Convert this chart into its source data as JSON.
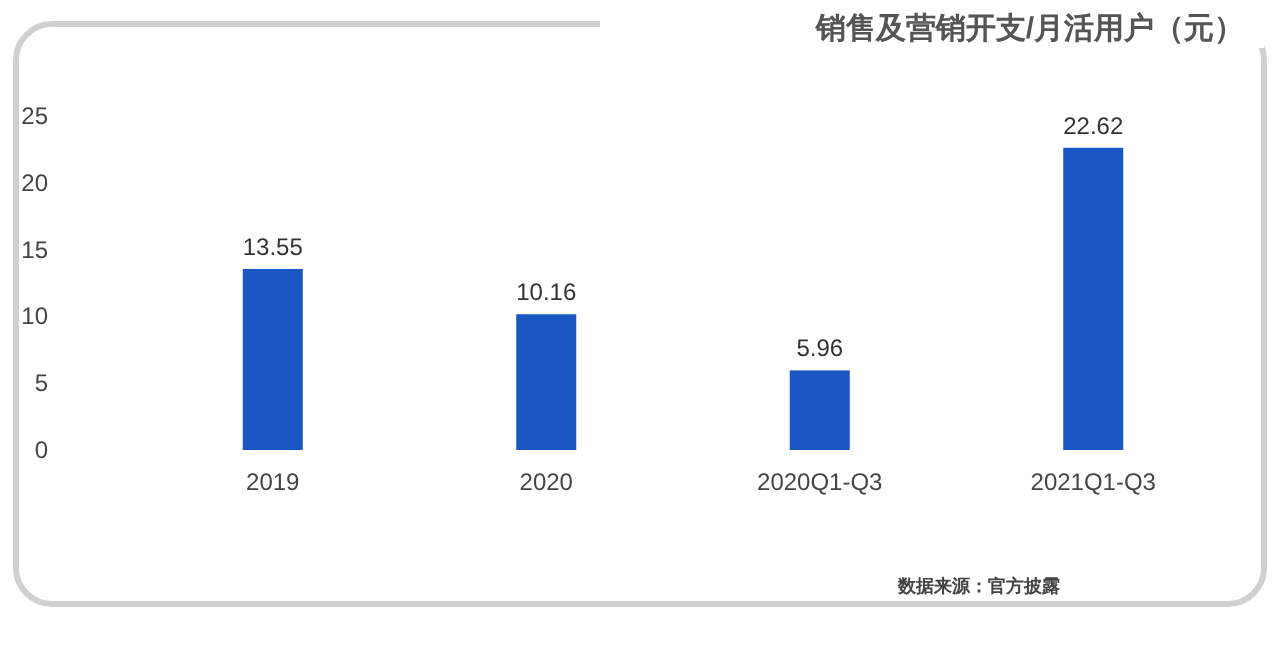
{
  "chart_data": {
    "type": "bar",
    "title": "销售及营销开支/月活用户（元）",
    "categories": [
      "2019",
      "2020",
      "2020Q1-Q3",
      "2021Q1-Q3"
    ],
    "values": [
      13.55,
      10.16,
      5.96,
      22.62
    ],
    "color": "#1a56c4",
    "ylim": [
      0,
      25
    ],
    "yticks": [
      0,
      5,
      10,
      15,
      20,
      25
    ],
    "grid": false,
    "data_labels": true,
    "annotations": [
      "数据来源：官方披露"
    ]
  }
}
